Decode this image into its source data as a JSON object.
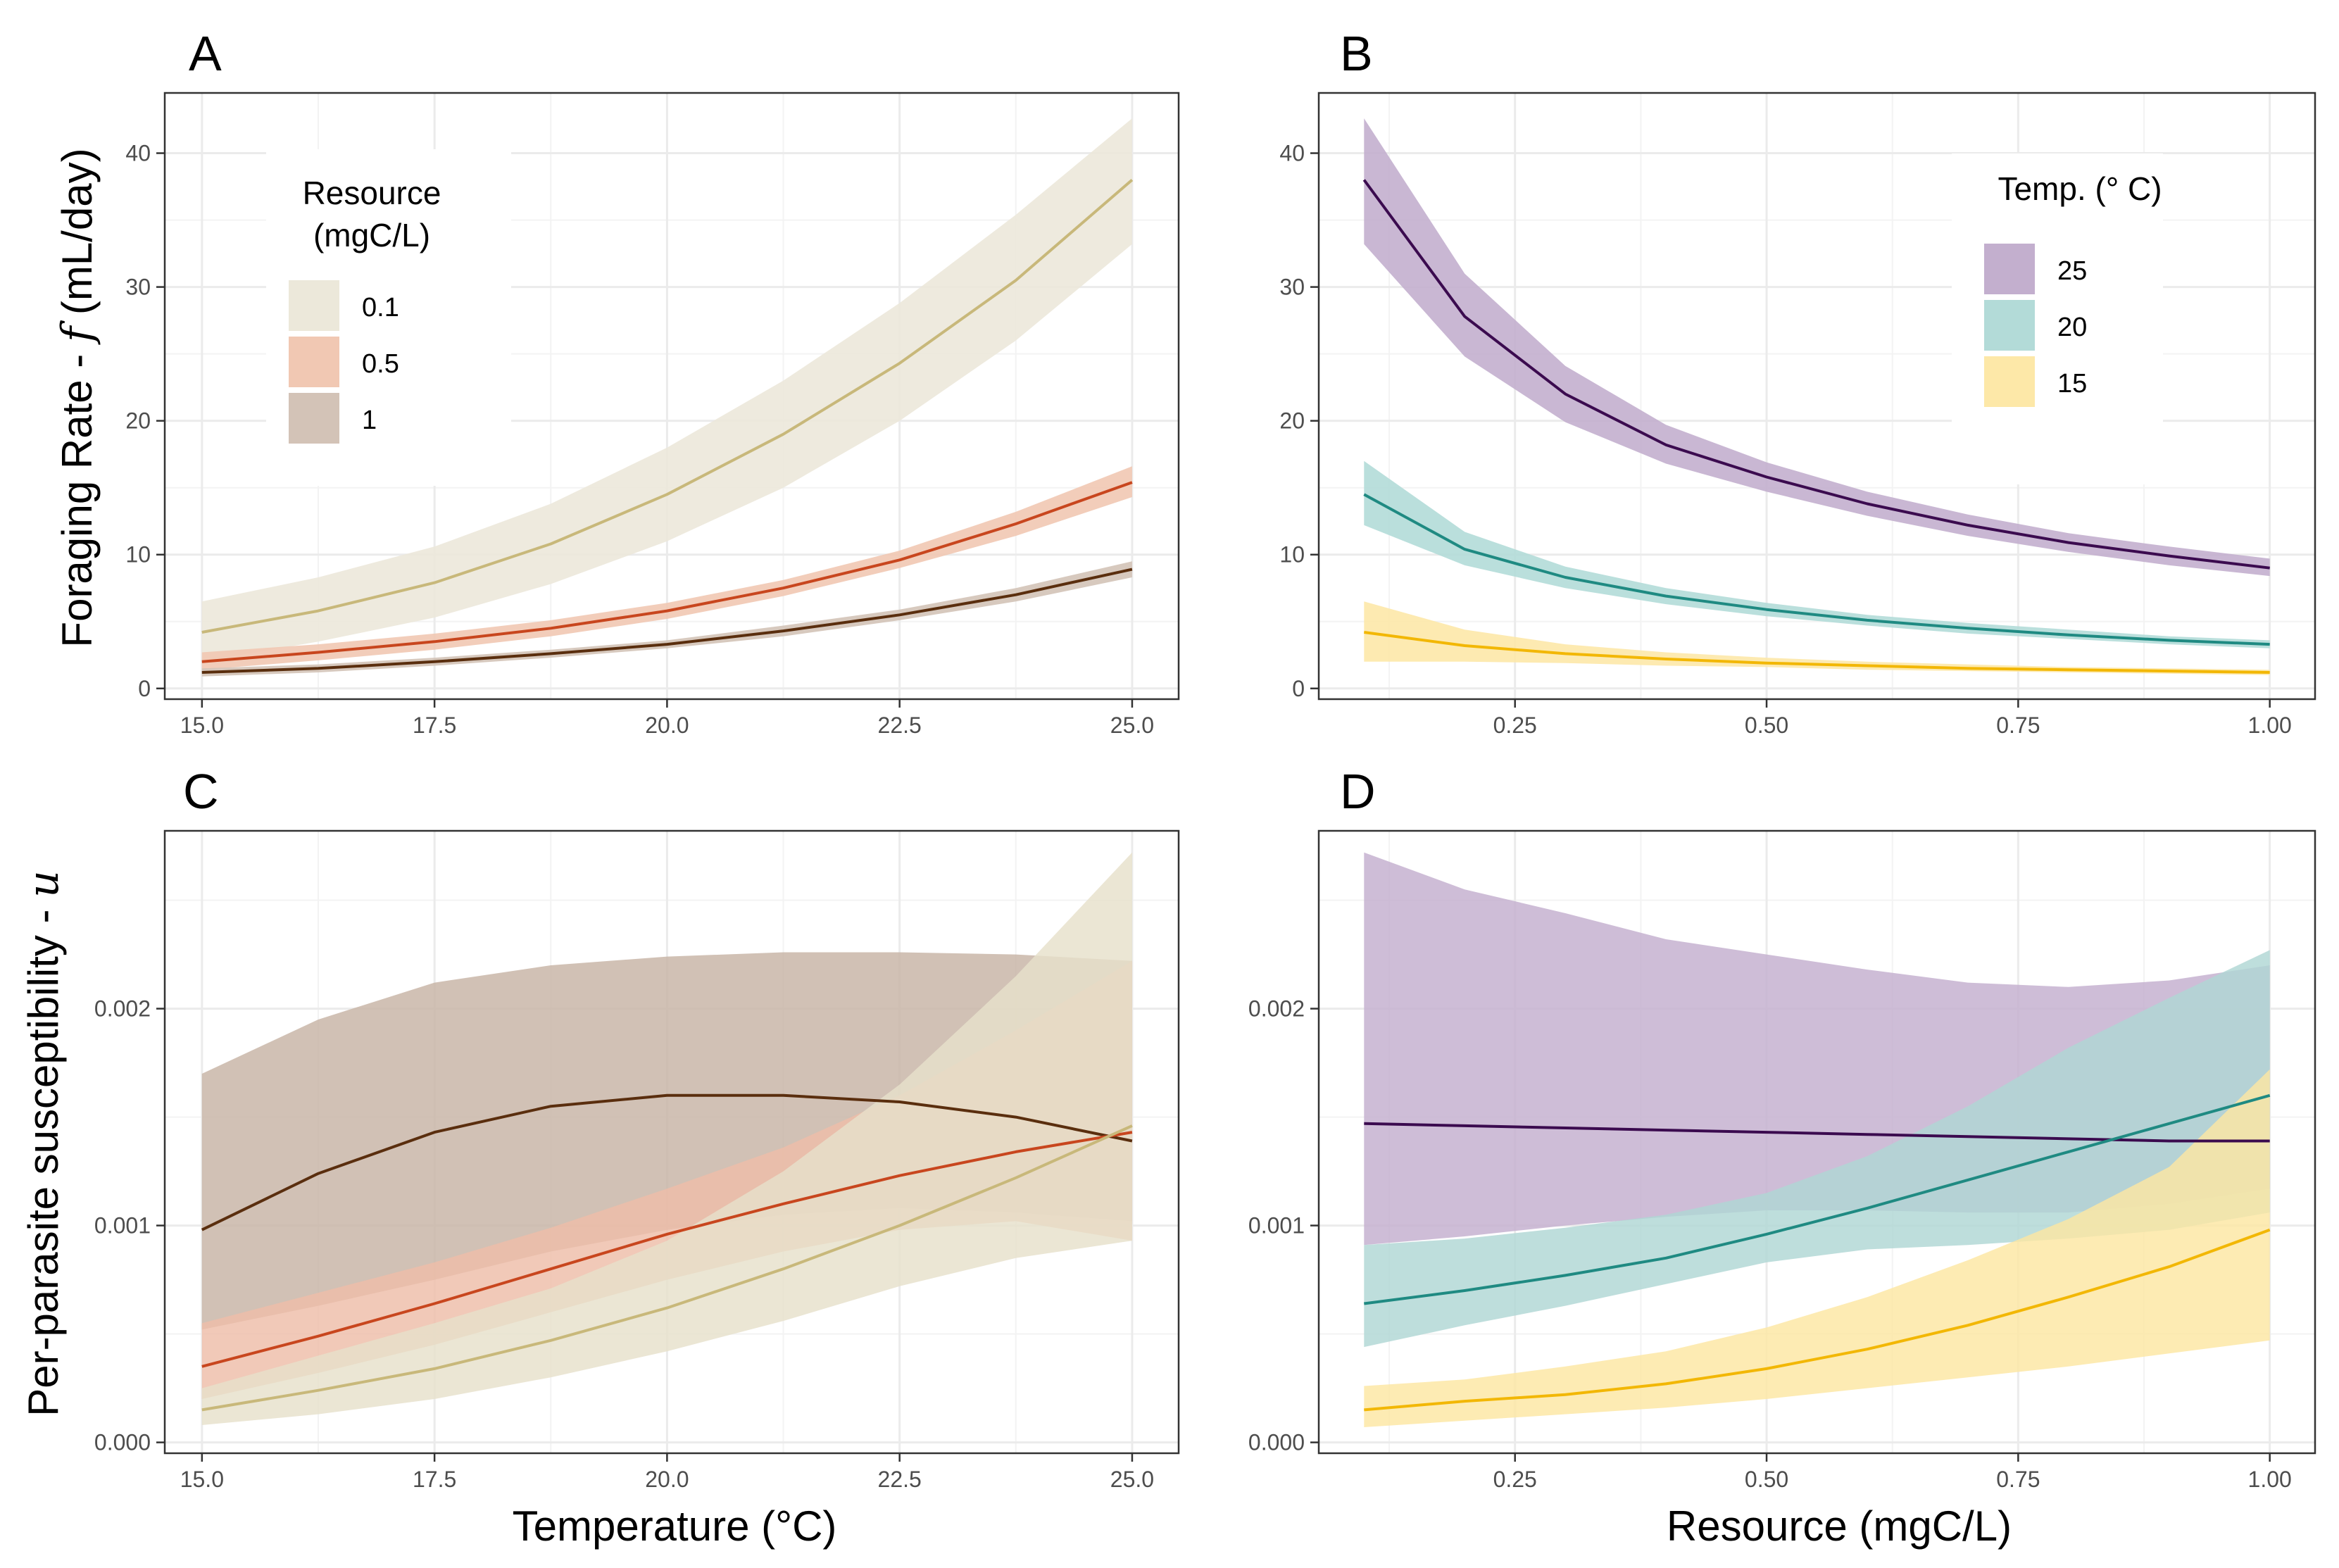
{
  "chart_data": [
    {
      "type": "line",
      "panel": "A",
      "xlabel": "",
      "ylabel": "Foraging Rate - ",
      "ylabel_symbol": "f",
      "ylabel_unit": " (mL/day)",
      "xlim": [
        14.6,
        25.5
      ],
      "ylim": [
        -0.8,
        44.5
      ],
      "xticks": [
        15.0,
        17.5,
        20.0,
        22.5,
        25.0
      ],
      "xtick_labels": [
        "15.0",
        "17.5",
        "20.0",
        "22.5",
        "25.0"
      ],
      "yticks": [
        0,
        10,
        20,
        30,
        40
      ],
      "ytick_labels": [
        "0",
        "10",
        "20",
        "30",
        "40"
      ],
      "grid": true,
      "legend": {
        "title_line1": "Resource",
        "title_line2": "(mgC/L)",
        "placement": "top-left",
        "entries": [
          "0.1",
          "0.5",
          "1"
        ]
      },
      "series": [
        {
          "name": "0.1",
          "color": "#c8b87a",
          "fill": "#ece8da",
          "x": [
            15.0,
            16.25,
            17.5,
            18.75,
            20.0,
            21.25,
            22.5,
            23.75,
            25.0
          ],
          "y": [
            4.2,
            5.8,
            7.9,
            10.8,
            14.5,
            19.0,
            24.3,
            30.5,
            38.0
          ],
          "lower": [
            2.0,
            3.5,
            5.3,
            7.8,
            11.0,
            15.0,
            20.0,
            26.0,
            33.2
          ],
          "upper": [
            6.5,
            8.3,
            10.6,
            13.8,
            18.0,
            23.0,
            28.8,
            35.4,
            42.6
          ]
        },
        {
          "name": "0.5",
          "color": "#c8461e",
          "fill": "#f1c8b3",
          "x": [
            15.0,
            16.25,
            17.5,
            18.75,
            20.0,
            21.25,
            22.5,
            23.75,
            25.0
          ],
          "y": [
            2.0,
            2.7,
            3.5,
            4.5,
            5.8,
            7.5,
            9.6,
            12.3,
            15.4
          ],
          "lower": [
            1.4,
            2.1,
            2.9,
            3.9,
            5.2,
            6.9,
            9.0,
            11.4,
            14.3
          ],
          "upper": [
            2.7,
            3.3,
            4.1,
            5.1,
            6.4,
            8.1,
            10.3,
            13.2,
            16.6
          ]
        },
        {
          "name": "1",
          "color": "#5a2e0e",
          "fill": "#d3c3b7",
          "x": [
            15.0,
            16.25,
            17.5,
            18.75,
            20.0,
            21.25,
            22.5,
            23.75,
            25.0
          ],
          "y": [
            1.2,
            1.5,
            2.0,
            2.6,
            3.3,
            4.3,
            5.5,
            7.0,
            8.9
          ],
          "lower": [
            0.9,
            1.2,
            1.7,
            2.3,
            3.0,
            3.9,
            5.1,
            6.5,
            8.3
          ],
          "upper": [
            1.5,
            1.8,
            2.3,
            2.9,
            3.6,
            4.7,
            5.9,
            7.5,
            9.5
          ]
        }
      ]
    },
    {
      "type": "line",
      "panel": "B",
      "xlabel": "",
      "ylabel": "",
      "xlim": [
        0.055,
        1.045
      ],
      "ylim": [
        -0.8,
        44.5
      ],
      "xticks": [
        0.25,
        0.5,
        0.75,
        1.0
      ],
      "xtick_labels": [
        "0.25",
        "0.50",
        "0.75",
        "1.00"
      ],
      "yticks": [
        0,
        10,
        20,
        30,
        40
      ],
      "ytick_labels": [
        "0",
        "10",
        "20",
        "30",
        "40"
      ],
      "grid": true,
      "legend": {
        "title": "Temp. (° C)",
        "placement": "top-right",
        "entries": [
          "25",
          "20",
          "15"
        ]
      },
      "series": [
        {
          "name": "25",
          "color": "#3b0b4f",
          "fill": "#c3afce",
          "x": [
            0.1,
            0.2,
            0.3,
            0.4,
            0.5,
            0.6,
            0.7,
            0.8,
            0.9,
            1.0
          ],
          "y": [
            38.0,
            27.8,
            22.0,
            18.2,
            15.8,
            13.8,
            12.2,
            10.9,
            9.9,
            9.0
          ],
          "lower": [
            33.2,
            24.8,
            19.9,
            16.8,
            14.7,
            12.9,
            11.4,
            10.2,
            9.2,
            8.4
          ],
          "upper": [
            42.6,
            31.0,
            24.1,
            19.7,
            16.9,
            14.7,
            13.0,
            11.6,
            10.6,
            9.7
          ]
        },
        {
          "name": "20",
          "color": "#1f8a82",
          "fill": "#b3dbd8",
          "x": [
            0.1,
            0.2,
            0.3,
            0.4,
            0.5,
            0.6,
            0.7,
            0.8,
            0.9,
            1.0
          ],
          "y": [
            14.5,
            10.4,
            8.3,
            6.9,
            5.9,
            5.1,
            4.5,
            4.0,
            3.6,
            3.3
          ],
          "lower": [
            12.2,
            9.2,
            7.5,
            6.3,
            5.4,
            4.7,
            4.1,
            3.7,
            3.3,
            3.0
          ],
          "upper": [
            17.0,
            11.7,
            9.1,
            7.5,
            6.4,
            5.5,
            4.9,
            4.4,
            3.9,
            3.6
          ]
        },
        {
          "name": "15",
          "color": "#f2b705",
          "fill": "#fde8a8",
          "x": [
            0.1,
            0.2,
            0.3,
            0.4,
            0.5,
            0.6,
            0.7,
            0.8,
            0.9,
            1.0
          ],
          "y": [
            4.2,
            3.2,
            2.6,
            2.2,
            1.9,
            1.7,
            1.5,
            1.4,
            1.3,
            1.2
          ],
          "lower": [
            2.0,
            2.0,
            1.9,
            1.7,
            1.6,
            1.4,
            1.3,
            1.2,
            1.1,
            1.0
          ],
          "upper": [
            6.5,
            4.4,
            3.3,
            2.7,
            2.3,
            2.0,
            1.8,
            1.6,
            1.5,
            1.4
          ]
        }
      ]
    },
    {
      "type": "line",
      "panel": "C",
      "xlabel": "Temperature (°C)",
      "ylabel": "Per-parasite susceptibility - ",
      "ylabel_symbol": "u",
      "xlim": [
        14.6,
        25.5
      ],
      "ylim": [
        -5e-05,
        0.00282
      ],
      "xticks": [
        15.0,
        17.5,
        20.0,
        22.5,
        25.0
      ],
      "xtick_labels": [
        "15.0",
        "17.5",
        "20.0",
        "22.5",
        "25.0"
      ],
      "yticks": [
        0.0,
        0.001,
        0.002
      ],
      "ytick_labels": [
        "0.000",
        "0.001",
        "0.002"
      ],
      "grid": true,
      "series": [
        {
          "name": "1",
          "color": "#5a2e0e",
          "fill": "#c7b3a5",
          "x": [
            15.0,
            16.25,
            17.5,
            18.75,
            20.0,
            21.25,
            22.5,
            23.75,
            25.0
          ],
          "y": [
            0.00098,
            0.00124,
            0.00143,
            0.00155,
            0.0016,
            0.0016,
            0.00157,
            0.0015,
            0.00139
          ],
          "lower": [
            0.00052,
            0.00063,
            0.00075,
            0.00088,
            0.00098,
            0.00105,
            0.00108,
            0.00106,
            0.00102
          ],
          "upper": [
            0.0017,
            0.00195,
            0.00212,
            0.0022,
            0.00224,
            0.00226,
            0.00226,
            0.00225,
            0.00222
          ]
        },
        {
          "name": "0.5",
          "color": "#c8461e",
          "fill": "#eebda8",
          "x": [
            15.0,
            16.25,
            17.5,
            18.75,
            20.0,
            21.25,
            22.5,
            23.75,
            25.0
          ],
          "y": [
            0.00035,
            0.00049,
            0.00064,
            0.0008,
            0.00096,
            0.0011,
            0.00123,
            0.00134,
            0.00143
          ],
          "lower": [
            0.0002,
            0.00032,
            0.00045,
            0.0006,
            0.00075,
            0.00088,
            0.00098,
            0.00102,
            0.00093
          ],
          "upper": [
            0.00055,
            0.00069,
            0.00083,
            0.00099,
            0.00117,
            0.00136,
            0.0016,
            0.0019,
            0.00222
          ]
        },
        {
          "name": "0.1",
          "color": "#c8b87a",
          "fill": "#e6e0cb",
          "x": [
            15.0,
            16.25,
            17.5,
            18.75,
            20.0,
            21.25,
            22.5,
            23.75,
            25.0
          ],
          "y": [
            0.00015,
            0.00024,
            0.00034,
            0.00047,
            0.00062,
            0.0008,
            0.001,
            0.00122,
            0.00146
          ],
          "lower": [
            8e-05,
            0.00013,
            0.0002,
            0.0003,
            0.00042,
            0.00056,
            0.00072,
            0.00085,
            0.00093
          ],
          "upper": [
            0.00025,
            0.0004,
            0.00055,
            0.00071,
            0.00093,
            0.00125,
            0.00165,
            0.00215,
            0.00272
          ]
        }
      ]
    },
    {
      "type": "line",
      "panel": "D",
      "xlabel": "Resource (mgC/L)",
      "ylabel": "",
      "xlim": [
        0.055,
        1.045
      ],
      "ylim": [
        -5e-05,
        0.00282
      ],
      "xticks": [
        0.25,
        0.5,
        0.75,
        1.0
      ],
      "xtick_labels": [
        "0.25",
        "0.50",
        "0.75",
        "1.00"
      ],
      "yticks": [
        0.0,
        0.001,
        0.002
      ],
      "ytick_labels": [
        "0.000",
        "0.001",
        "0.002"
      ],
      "grid": true,
      "series": [
        {
          "name": "25",
          "color": "#3b0b4f",
          "fill": "#c3afce",
          "x": [
            0.1,
            0.2,
            0.3,
            0.4,
            0.5,
            0.6,
            0.7,
            0.8,
            0.9,
            1.0
          ],
          "y": [
            0.00147,
            0.00146,
            0.00145,
            0.00144,
            0.00143,
            0.00142,
            0.00141,
            0.0014,
            0.00139,
            0.00139
          ],
          "lower": [
            0.00091,
            0.00095,
            0.001,
            0.00104,
            0.00107,
            0.00107,
            0.00106,
            0.00106,
            0.0011,
            0.00117
          ],
          "upper": [
            0.00272,
            0.00255,
            0.00244,
            0.00232,
            0.00225,
            0.00218,
            0.00212,
            0.0021,
            0.00213,
            0.0022
          ]
        },
        {
          "name": "20",
          "color": "#1f8a82",
          "fill": "#b0d7d4",
          "x": [
            0.1,
            0.2,
            0.3,
            0.4,
            0.5,
            0.6,
            0.7,
            0.8,
            0.9,
            1.0
          ],
          "y": [
            0.00064,
            0.0007,
            0.00077,
            0.00085,
            0.00096,
            0.00108,
            0.00121,
            0.00134,
            0.00147,
            0.0016
          ],
          "lower": [
            0.00044,
            0.00054,
            0.00063,
            0.00073,
            0.00083,
            0.00089,
            0.00091,
            0.00094,
            0.00098,
            0.00106
          ],
          "upper": [
            0.00091,
            0.00094,
            0.00099,
            0.00105,
            0.00115,
            0.00132,
            0.00155,
            0.00182,
            0.00205,
            0.00227
          ]
        },
        {
          "name": "15",
          "color": "#f2b705",
          "fill": "#fde6a2",
          "x": [
            0.1,
            0.2,
            0.3,
            0.4,
            0.5,
            0.6,
            0.7,
            0.8,
            0.9,
            1.0
          ],
          "y": [
            0.00015,
            0.00019,
            0.00022,
            0.00027,
            0.00034,
            0.00043,
            0.00054,
            0.00067,
            0.00081,
            0.00098
          ],
          "lower": [
            7e-05,
            0.0001,
            0.00013,
            0.00016,
            0.0002,
            0.00025,
            0.0003,
            0.00035,
            0.00041,
            0.00047
          ],
          "upper": [
            0.00026,
            0.00029,
            0.00035,
            0.00042,
            0.00053,
            0.00067,
            0.00084,
            0.00103,
            0.00127,
            0.00172
          ]
        }
      ]
    }
  ]
}
